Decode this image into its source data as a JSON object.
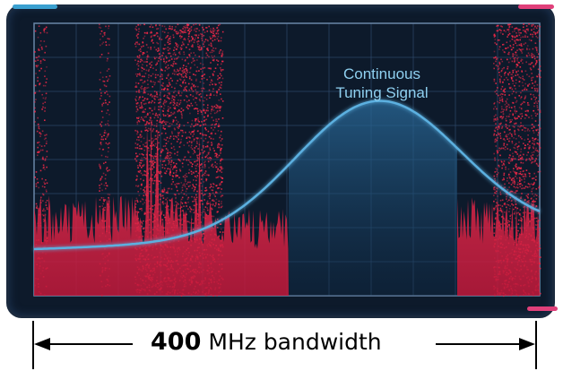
{
  "diagram": {
    "signal_label_line1": "Continuous",
    "signal_label_line2": "Tuning Signal",
    "bandwidth_value": "400",
    "bandwidth_unit": "MHz bandwidth"
  },
  "colors": {
    "screen_background": "#0d1a2b",
    "grid": "#2f4a6a",
    "noise": "#ff2a4a",
    "signal_curve": "#5bb0e0",
    "signal_fill": "#1d4d75",
    "label": "#8fd0f0",
    "corner_left": "#3aa0d0",
    "corner_right": "#e0407a"
  }
}
